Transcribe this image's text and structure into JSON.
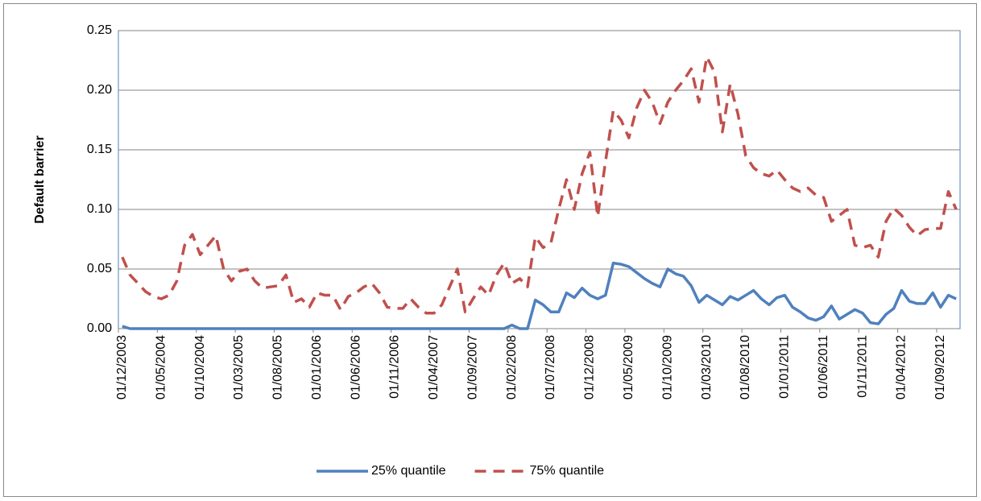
{
  "chart_data": {
    "type": "line",
    "y_label": "Default barrier",
    "categories": [
      "01/12/2003",
      null,
      null,
      null,
      null,
      "01/05/2004",
      null,
      null,
      null,
      null,
      "01/10/2004",
      null,
      null,
      null,
      null,
      "01/03/2005",
      null,
      null,
      null,
      null,
      "01/08/2005",
      null,
      null,
      null,
      null,
      "01/01/2006",
      null,
      null,
      null,
      null,
      "01/06/2006",
      null,
      null,
      null,
      null,
      "01/11/2006",
      null,
      null,
      null,
      null,
      "01/04/2007",
      null,
      null,
      null,
      null,
      "01/09/2007",
      null,
      null,
      null,
      null,
      "01/02/2008",
      null,
      null,
      null,
      null,
      "01/07/2008",
      null,
      null,
      null,
      null,
      "01/12/2008",
      null,
      null,
      null,
      null,
      "01/05/2009",
      null,
      null,
      null,
      null,
      "01/10/2009",
      null,
      null,
      null,
      null,
      "01/03/2010",
      null,
      null,
      null,
      null,
      "01/08/2010",
      null,
      null,
      null,
      null,
      "01/01/2011",
      null,
      null,
      null,
      null,
      "01/06/2011",
      null,
      null,
      null,
      null,
      "01/11/2011",
      null,
      null,
      null,
      null,
      "01/04/2012",
      null,
      null,
      null,
      null,
      "01/09/2012",
      null,
      null
    ],
    "series": [
      {
        "name": "25% quantile",
        "color": "#4f81bd",
        "line_style": "solid",
        "values": [
          0.002,
          0,
          0,
          0,
          0,
          0,
          0,
          0,
          0,
          0,
          0,
          0,
          0,
          0,
          0,
          0,
          0,
          0,
          0,
          0,
          0,
          0,
          0,
          0,
          0,
          0,
          0,
          0,
          0,
          0,
          0,
          0,
          0,
          0,
          0,
          0,
          0,
          0,
          0,
          0,
          0,
          0,
          0,
          0,
          0,
          0,
          0,
          0,
          0,
          0,
          0.003,
          0,
          0,
          0.024,
          0.02,
          0.014,
          0.014,
          0.03,
          0.026,
          0.034,
          0.028,
          0.025,
          0.028,
          0.055,
          0.054,
          0.052,
          0.047,
          0.042,
          0.038,
          0.035,
          0.05,
          0.046,
          0.044,
          0.036,
          0.022,
          0.028,
          0.024,
          0.02,
          0.027,
          0.024,
          0.028,
          0.032,
          0.025,
          0.02,
          0.026,
          0.028,
          0.018,
          0.014,
          0.009,
          0.007,
          0.01,
          0.019,
          0.008,
          0.012,
          0.016,
          0.013,
          0.005,
          0.004,
          0.012,
          0.017,
          0.032,
          0.023,
          0.021,
          0.021,
          0.03,
          0.018,
          0.028,
          0.025
        ]
      },
      {
        "name": "75% quantile",
        "color": "#c0504d",
        "line_style": "dashed",
        "values": [
          0.06,
          0.045,
          0.038,
          0.031,
          0.027,
          0.025,
          0.028,
          0.04,
          0.07,
          0.079,
          0.062,
          0.07,
          0.078,
          0.05,
          0.04,
          0.048,
          0.05,
          0.04,
          0.034,
          0.035,
          0.036,
          0.045,
          0.022,
          0.025,
          0.018,
          0.03,
          0.028,
          0.028,
          0.016,
          0.027,
          0.03,
          0.035,
          0.038,
          0.03,
          0.018,
          0.017,
          0.017,
          0.025,
          0.018,
          0.013,
          0.013,
          0.02,
          0.035,
          0.05,
          0.014,
          0.025,
          0.035,
          0.028,
          0.045,
          0.055,
          0.038,
          0.042,
          0.035,
          0.077,
          0.068,
          0.072,
          0.1,
          0.125,
          0.1,
          0.13,
          0.148,
          0.094,
          0.14,
          0.183,
          0.175,
          0.16,
          0.185,
          0.2,
          0.19,
          0.172,
          0.19,
          0.2,
          0.208,
          0.218,
          0.19,
          0.228,
          0.215,
          0.165,
          0.205,
          0.18,
          0.145,
          0.135,
          0.13,
          0.128,
          0.133,
          0.125,
          0.118,
          0.115,
          0.118,
          0.112,
          0.11,
          0.09,
          0.095,
          0.1,
          0.07,
          0.068,
          0.07,
          0.06,
          0.09,
          0.101,
          0.095,
          0.085,
          0.078,
          0.083,
          0.084,
          0.084,
          0.115,
          0.1
        ]
      }
    ],
    "ylim": [
      0,
      0.25
    ],
    "yticks": [
      {
        "value": 0,
        "label": "0.00"
      },
      0.05,
      {
        "value": 0.1,
        "label": "0.10"
      },
      0.15,
      {
        "value": 0.2,
        "label": "0.20"
      },
      0.25
    ],
    "grid": true,
    "legend": "bottom"
  }
}
